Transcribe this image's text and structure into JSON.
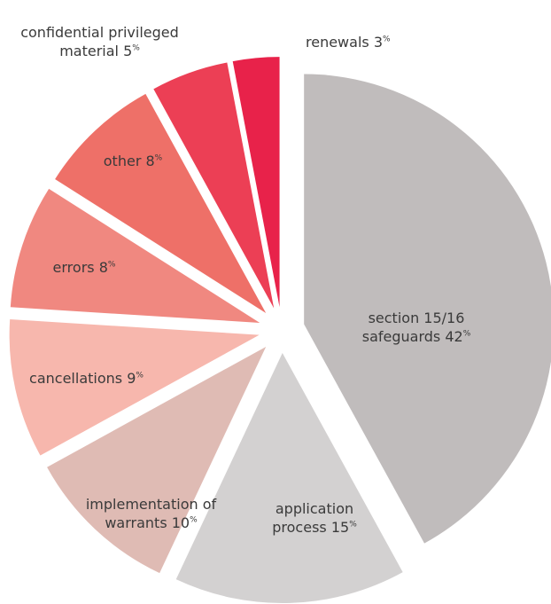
{
  "chart_data": {
    "type": "pie",
    "categories": [
      "section 15/16 safeguards",
      "application process",
      "implementation of warrants",
      "cancellations",
      "errors",
      "other",
      "confidential privileged material",
      "renewals"
    ],
    "values": [
      42,
      15,
      10,
      9,
      8,
      8,
      5,
      3
    ],
    "unit": "%",
    "colors": [
      "#c0bcbc",
      "#d3d1d1",
      "#dfbbb4",
      "#f7b7ad",
      "#f08880",
      "#ee7068",
      "#ec3f55",
      "#e8224a"
    ]
  }
}
